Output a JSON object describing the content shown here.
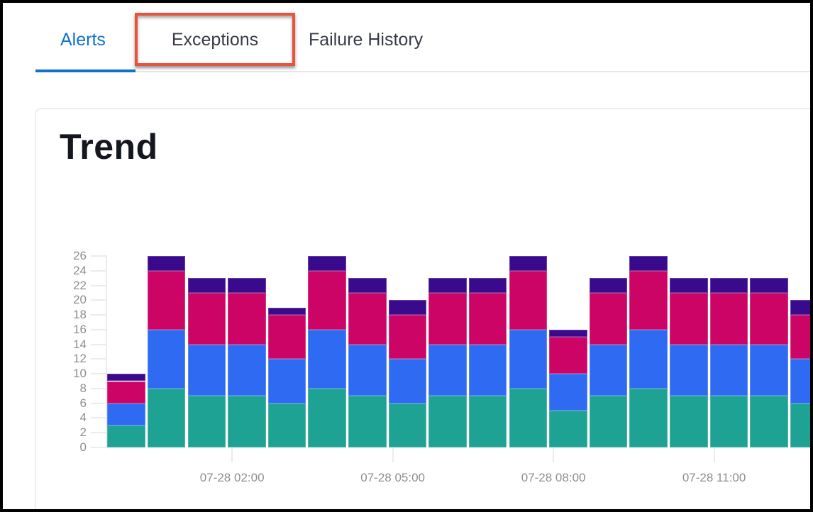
{
  "tabs": {
    "alerts_label": "Alerts",
    "exceptions_label": "Exceptions",
    "failure_history_label": "Failure History",
    "active_tab": "Alerts",
    "active_color": "#0E73CB"
  },
  "annotation": {
    "type": "highlight-box-around-exceptions-tab",
    "color": "#E7543B"
  },
  "card": {
    "title": "Trend"
  },
  "chart_data": {
    "type": "bar",
    "stacked": true,
    "title": "Trend",
    "xlabel": "",
    "ylabel": "",
    "ylim": [
      0,
      26
    ],
    "ytick_step": 2,
    "ytick_labels": [
      "0",
      "2",
      "4",
      "6",
      "8",
      "10",
      "12",
      "14",
      "16",
      "18",
      "20",
      "22",
      "24",
      "26"
    ],
    "x_tick_labels": [
      "07-28 02:00",
      "07-28 05:00",
      "07-28 08:00",
      "07-28 11:00"
    ],
    "x_tick_bar_index": [
      3,
      7,
      11,
      15
    ],
    "legend": "none",
    "grid": "off",
    "bar_count": 18,
    "series": [
      {
        "name": "teal",
        "color": "#1EA293",
        "values": [
          3,
          8,
          7,
          7,
          6,
          8,
          7,
          6,
          7,
          7,
          8,
          5,
          7,
          8,
          7,
          7,
          7,
          6
        ]
      },
      {
        "name": "blue",
        "color": "#2E6BF2",
        "values": [
          3,
          8,
          7,
          7,
          6,
          8,
          7,
          6,
          7,
          7,
          8,
          5,
          7,
          8,
          7,
          7,
          7,
          6
        ]
      },
      {
        "name": "magenta",
        "color": "#CC0466",
        "values": [
          3,
          8,
          7,
          7,
          6,
          8,
          7,
          6,
          7,
          7,
          8,
          5,
          7,
          8,
          7,
          7,
          7,
          6
        ]
      },
      {
        "name": "purple",
        "color": "#3A0A8C",
        "values": [
          1,
          2,
          2,
          2,
          1,
          2,
          2,
          2,
          2,
          2,
          2,
          1,
          2,
          2,
          2,
          2,
          2,
          2
        ]
      }
    ],
    "totals": [
      10,
      26,
      23,
      23,
      19,
      26,
      23,
      20,
      23,
      23,
      26,
      16,
      23,
      26,
      23,
      23,
      23,
      20
    ]
  }
}
